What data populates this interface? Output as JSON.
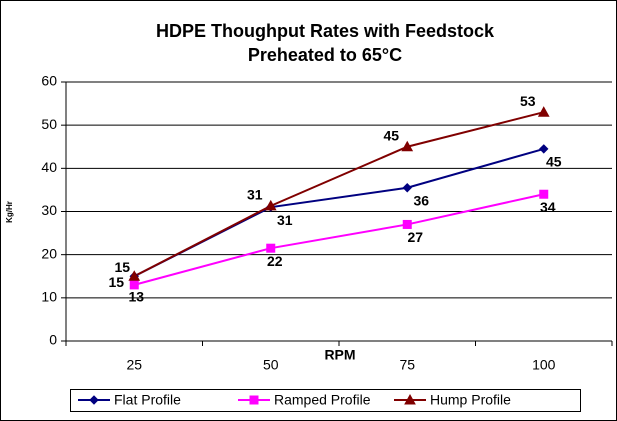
{
  "chart_data": {
    "type": "line",
    "title": [
      "HDPE Thoughput Rates with Feedstock",
      "Preheated to 65°C"
    ],
    "x_label": "RPM",
    "y_label": "Kg/Hr",
    "categories": [
      "25",
      "50",
      "75",
      "100"
    ],
    "series": [
      {
        "name": "Flat Profile",
        "color": "#000080",
        "marker": "diamond",
        "values": [
          15,
          31,
          35.5,
          44.5
        ],
        "value_labels": [
          "15",
          "31",
          "36",
          "45"
        ]
      },
      {
        "name": "Ramped Profile",
        "color": "#ff00ff",
        "marker": "square",
        "values": [
          13,
          21.5,
          27,
          34
        ],
        "value_labels": [
          "13",
          "22",
          "27",
          "34"
        ]
      },
      {
        "name": "Hump Profile",
        "color": "#800000",
        "marker": "triangle",
        "values": [
          15,
          31.3,
          45,
          53
        ],
        "value_labels": [
          "15",
          "31",
          "45",
          "53"
        ]
      }
    ],
    "ylim": [
      0,
      60
    ],
    "yticks": [
      0,
      10,
      20,
      30,
      40,
      50,
      60
    ],
    "grid": true,
    "legend": "bottom"
  }
}
